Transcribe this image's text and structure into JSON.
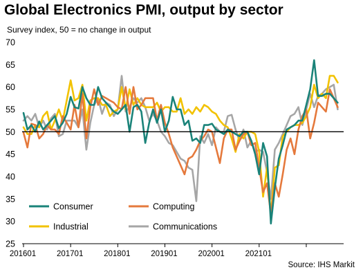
{
  "title": "Global Electronics PMI, output by sector",
  "subtitle": "Survey index, 50 = no change in output",
  "source": "Source: IHS Markit",
  "colors": {
    "Consumer": "#1a8379",
    "Computing": "#e5793c",
    "Industrial": "#f2c200",
    "Communications": "#a6a6a6",
    "baseline": "#000000"
  },
  "chart_data": {
    "type": "line",
    "xlabel": "",
    "ylabel": "",
    "x_tick_labels": [
      "201601",
      "201701",
      "201801",
      "201901",
      "202001",
      "202101"
    ],
    "y_ticks": [
      25,
      30,
      35,
      40,
      45,
      50,
      55,
      60,
      65,
      70
    ],
    "ylim": [
      25,
      70
    ],
    "reference_line": 50,
    "legend_position": "bottom-left",
    "x_start": "2016-01",
    "series": [
      {
        "name": "Consumer",
        "values": [
          54.2,
          50.5,
          51.5,
          50.0,
          52.3,
          50.5,
          51.5,
          52.5,
          53.5,
          50.8,
          52.0,
          54.0,
          57.8,
          55.5,
          55.2,
          60.0,
          57.5,
          56.0,
          56.0,
          60.0,
          57.5,
          56.5,
          55.5,
          54.5,
          54.0,
          55.0,
          56.0,
          50.0,
          55.5,
          56.0,
          54.5,
          47.5,
          52.0,
          55.0,
          52.0,
          55.0,
          50.0,
          52.5,
          57.8,
          55.0,
          55.0,
          51.5,
          52.5,
          48.0,
          48.5,
          47.5,
          51.5,
          51.5,
          51.8,
          50.5,
          50.0,
          49.5,
          50.5,
          50.0,
          49.5,
          49.0,
          50.0,
          50.0,
          48.0,
          45.0,
          40.5,
          47.5,
          44.5,
          29.5,
          37.5,
          44.0,
          47.0,
          50.5,
          51.0,
          51.5,
          52.5,
          52.5,
          56.0,
          59.5,
          66.0,
          58.0,
          58.0,
          58.5,
          58.5,
          57.5,
          56.5
        ]
      },
      {
        "name": "Computing",
        "values": [
          49.8,
          46.5,
          51.8,
          51.5,
          48.5,
          49.5,
          51.5,
          50.5,
          50.5,
          49.5,
          53.5,
          52.0,
          50.5,
          56.0,
          51.0,
          58.5,
          48.5,
          55.5,
          59.5,
          56.0,
          58.0,
          57.5,
          57.0,
          56.5,
          55.5,
          55.0,
          60.0,
          54.0,
          60.0,
          55.0,
          56.0,
          57.5,
          57.5,
          57.5,
          52.5,
          56.0,
          52.0,
          49.5,
          46.5,
          44.5,
          42.5,
          40.5,
          44.0,
          44.5,
          46.0,
          48.0,
          49.0,
          50.5,
          50.0,
          46.5,
          43.0,
          48.5,
          50.5,
          50.5,
          46.0,
          48.0,
          49.5,
          50.0,
          47.0,
          47.5,
          42.0,
          36.5,
          38.5,
          31.5,
          38.5,
          35.5,
          40.5,
          46.0,
          48.5,
          45.0,
          50.5,
          53.5,
          55.0,
          48.5,
          52.0,
          56.5,
          55.5,
          54.5,
          59.5,
          57.5,
          55.5
        ]
      },
      {
        "name": "Industrial",
        "values": [
          51.0,
          49.5,
          49.5,
          51.5,
          51.0,
          53.5,
          54.5,
          50.5,
          52.5,
          55.0,
          52.5,
          57.0,
          61.5,
          57.0,
          57.5,
          60.5,
          52.5,
          57.0,
          57.5,
          57.5,
          56.0,
          56.0,
          53.5,
          54.5,
          55.0,
          60.0,
          55.0,
          59.5,
          56.0,
          57.5,
          56.0,
          55.5,
          55.5,
          55.5,
          56.5,
          54.5,
          55.5,
          55.5,
          54.5,
          54.5,
          57.5,
          54.0,
          55.0,
          54.0,
          55.5,
          54.5,
          56.0,
          55.5,
          54.5,
          54.0,
          52.5,
          51.5,
          51.0,
          48.5,
          45.5,
          49.5,
          48.5,
          50.0,
          50.0,
          49.5,
          45.5,
          35.5,
          42.0,
          31.5,
          42.0,
          42.5,
          49.0,
          50.0,
          51.0,
          51.5,
          51.5,
          52.0,
          53.5,
          55.5,
          60.5,
          57.5,
          58.5,
          57.5,
          62.5,
          62.5,
          61.0
        ]
      },
      {
        "name": "Communications",
        "values": [
          52.5,
          53.5,
          52.5,
          54.0,
          51.0,
          52.5,
          50.5,
          53.0,
          54.0,
          49.0,
          49.5,
          52.5,
          52.5,
          52.5,
          51.0,
          55.0,
          46.0,
          52.0,
          56.0,
          57.5,
          54.0,
          56.5,
          56.0,
          53.5,
          55.0,
          62.5,
          54.5,
          55.5,
          57.5,
          56.5,
          57.5,
          55.5,
          52.5,
          54.0,
          52.5,
          50.0,
          49.0,
          47.5,
          47.0,
          45.5,
          44.0,
          43.5,
          42.0,
          41.5,
          34.5,
          49.0,
          47.5,
          49.5,
          47.0,
          51.0,
          50.0,
          50.0,
          53.5,
          53.8,
          50.5,
          48.0,
          50.5,
          46.5,
          48.0,
          45.5,
          46.0,
          45.5,
          41.0,
          35.0,
          46.0,
          47.5,
          49.5,
          51.5,
          53.5,
          54.0,
          55.5,
          51.5,
          55.0,
          58.5,
          55.5,
          58.0,
          58.5,
          59.5,
          60.0,
          60.5,
          55.0
        ]
      }
    ]
  }
}
